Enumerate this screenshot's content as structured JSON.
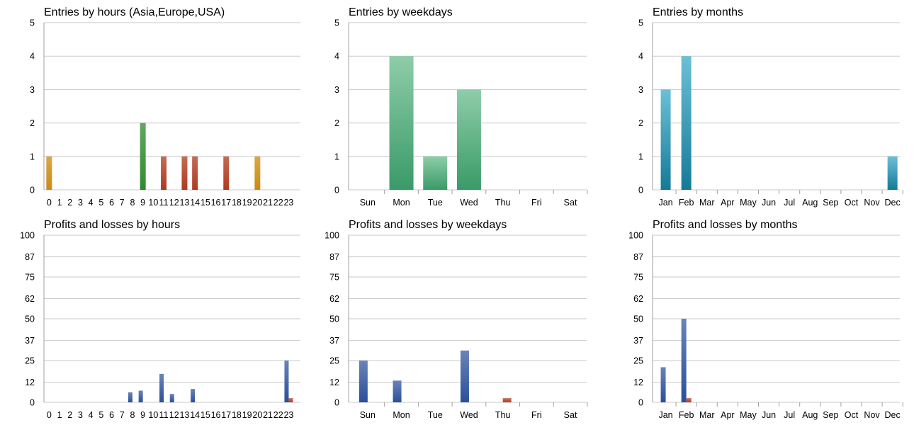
{
  "chart_data": [
    {
      "type": "bar",
      "title": "Entries by hours (Asia,Europe,USA)",
      "categories": [
        "0",
        "1",
        "2",
        "3",
        "4",
        "5",
        "6",
        "7",
        "8",
        "9",
        "10",
        "11",
        "12",
        "13",
        "14",
        "15",
        "16",
        "17",
        "18",
        "19",
        "20",
        "21",
        "22",
        "23"
      ],
      "values": [
        1,
        0,
        0,
        0,
        0,
        0,
        0,
        0,
        0,
        2,
        0,
        1,
        0,
        1,
        1,
        0,
        0,
        1,
        0,
        0,
        1,
        0,
        0,
        0
      ],
      "bar_colors": [
        "#cc8a12",
        "#cc8a12",
        "#cc8a12",
        "#cc8a12",
        "#cc8a12",
        "#cc8a12",
        "#cc8a12",
        "#cc8a12",
        "#cc8a12",
        "#2e8b2e",
        "#2e8b2e",
        "#b03a1e",
        "#b03a1e",
        "#b03a1e",
        "#b03a1e",
        "#b03a1e",
        "#b03a1e",
        "#b03a1e",
        "#b03a1e",
        "#b03a1e",
        "#cc8a12",
        "#cc8a12",
        "#cc8a12",
        "#cc8a12"
      ],
      "yticks": [
        0,
        1,
        2,
        3,
        4,
        5
      ],
      "ylim": [
        0,
        5
      ],
      "grid": true,
      "xlabel": "",
      "ylabel": ""
    },
    {
      "type": "bar",
      "title": "Entries by weekdays",
      "categories": [
        "Sun",
        "Mon",
        "Tue",
        "Wed",
        "Thu",
        "Fri",
        "Sat"
      ],
      "values": [
        0,
        4,
        1,
        3,
        0,
        0,
        0
      ],
      "color": "#3a9a68",
      "color_light": "#8ecda8",
      "yticks": [
        0,
        1,
        2,
        3,
        4,
        5
      ],
      "ylim": [
        0,
        5
      ],
      "grid": true,
      "xlabel": "",
      "ylabel": ""
    },
    {
      "type": "bar",
      "title": "Entries by months",
      "categories": [
        "Jan",
        "Feb",
        "Mar",
        "Apr",
        "May",
        "Jun",
        "Jul",
        "Aug",
        "Sep",
        "Oct",
        "Nov",
        "Dec"
      ],
      "values": [
        3,
        4,
        0,
        0,
        0,
        0,
        0,
        0,
        0,
        0,
        0,
        1
      ],
      "color": "#147a98",
      "color_light": "#6cc0d6",
      "yticks": [
        0,
        1,
        2,
        3,
        4,
        5
      ],
      "ylim": [
        0,
        5
      ],
      "grid": true,
      "xlabel": "",
      "ylabel": ""
    },
    {
      "type": "bar",
      "title": "Profits and losses by hours",
      "categories": [
        "0",
        "1",
        "2",
        "3",
        "4",
        "5",
        "6",
        "7",
        "8",
        "9",
        "10",
        "11",
        "12",
        "13",
        "14",
        "15",
        "16",
        "17",
        "18",
        "19",
        "20",
        "21",
        "22",
        "23"
      ],
      "series": [
        {
          "values": [
            0,
            0,
            0,
            0,
            0,
            0,
            0,
            0,
            6,
            7,
            0,
            17,
            5,
            0,
            8,
            0,
            0,
            0,
            0,
            0,
            0,
            0,
            0,
            25
          ],
          "color": "#2a4f9a"
        },
        {
          "values": [
            0,
            0,
            0,
            0,
            0,
            0,
            0,
            0,
            0,
            0,
            0,
            0,
            0,
            0,
            0,
            0,
            0,
            0,
            0,
            0,
            0,
            0,
            0,
            2.5
          ],
          "color": "#b03a1e"
        }
      ],
      "yticks": [
        0,
        12,
        25,
        37,
        50,
        62,
        75,
        87,
        100
      ],
      "ylim": [
        0,
        100
      ],
      "grid": true,
      "xlabel": "",
      "ylabel": ""
    },
    {
      "type": "bar",
      "title": "Profits and losses by weekdays",
      "categories": [
        "Sun",
        "Mon",
        "Tue",
        "Wed",
        "Thu",
        "Fri",
        "Sat"
      ],
      "series": [
        {
          "values": [
            25,
            13,
            0,
            31,
            0,
            0,
            0
          ],
          "color": "#2a4f9a"
        },
        {
          "values": [
            0,
            0,
            0,
            0,
            2.5,
            0,
            0
          ],
          "color": "#b03a1e"
        }
      ],
      "yticks": [
        0,
        12,
        25,
        37,
        50,
        62,
        75,
        87,
        100
      ],
      "ylim": [
        0,
        100
      ],
      "grid": true,
      "xlabel": "",
      "ylabel": ""
    },
    {
      "type": "bar",
      "title": "Profits and losses by months",
      "categories": [
        "Jan",
        "Feb",
        "Mar",
        "Apr",
        "May",
        "Jun",
        "Jul",
        "Aug",
        "Sep",
        "Oct",
        "Nov",
        "Dec"
      ],
      "series": [
        {
          "values": [
            21,
            50,
            0,
            0,
            0,
            0,
            0,
            0,
            0,
            0,
            0,
            0
          ],
          "color": "#2a4f9a"
        },
        {
          "values": [
            0,
            2.5,
            0,
            0,
            0,
            0,
            0,
            0,
            0,
            0,
            0,
            0
          ],
          "color": "#b03a1e"
        }
      ],
      "yticks": [
        0,
        12,
        25,
        37,
        50,
        62,
        75,
        87,
        100
      ],
      "ylim": [
        0,
        100
      ],
      "grid": true,
      "xlabel": "",
      "ylabel": ""
    }
  ]
}
